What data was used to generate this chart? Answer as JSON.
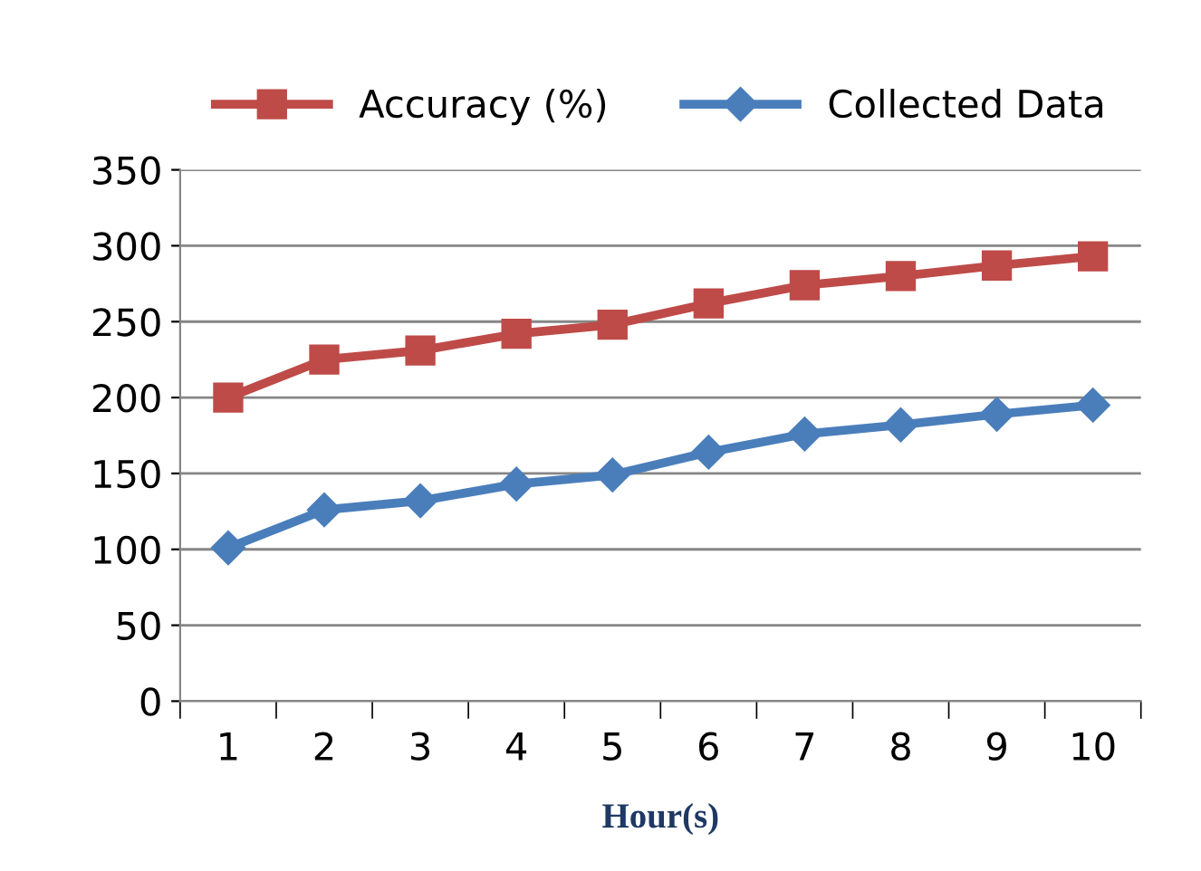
{
  "chart_data": {
    "type": "line",
    "xlabel": "Hour(s)",
    "categories": [
      "1",
      "2",
      "3",
      "4",
      "5",
      "6",
      "7",
      "8",
      "9",
      "10"
    ],
    "series": [
      {
        "name": "Accuracy (%)",
        "color": "#be4b48",
        "marker": "square",
        "values": [
          200,
          225,
          231,
          242,
          248,
          262,
          274,
          280,
          287,
          293
        ]
      },
      {
        "name": "Collected Data",
        "color": "#4a7ebb",
        "marker": "diamond",
        "values": [
          101,
          126,
          132,
          143,
          149,
          164,
          176,
          182,
          189,
          195
        ]
      }
    ],
    "ylim": [
      0,
      350
    ],
    "yticks": [
      0,
      50,
      100,
      150,
      200,
      250,
      300,
      350
    ],
    "grid": "y",
    "legend": "top",
    "line_style": "solid"
  }
}
